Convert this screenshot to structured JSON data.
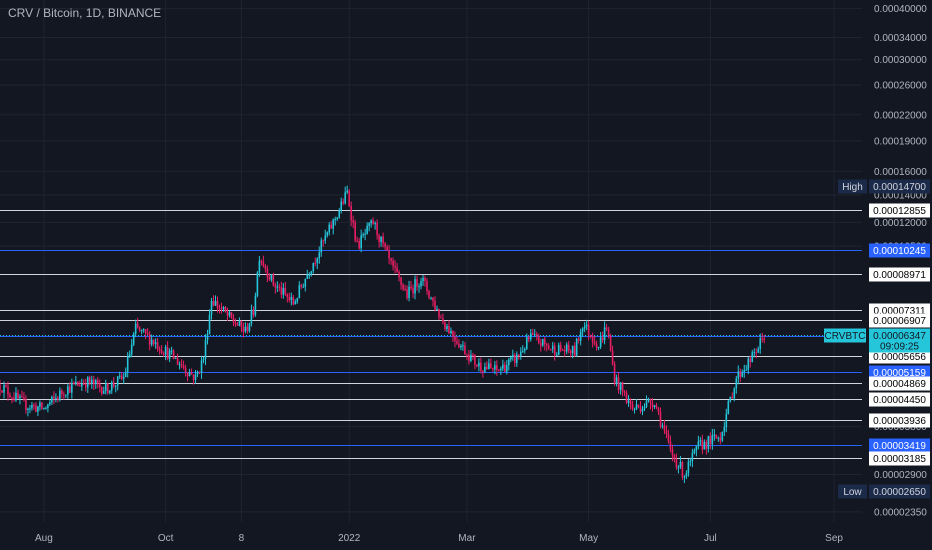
{
  "header": {
    "title": "CRV / Bitcoin, 1D, BINANCE"
  },
  "colors": {
    "background": "#131722",
    "grid": "#1f2430",
    "up": "#26c6da",
    "down": "#e91e63",
    "white_line": "#d1d4dc",
    "blue_line": "#2962ff",
    "axis_text": "#b2b5be"
  },
  "price_axis": {
    "ticks": [
      "0.00040000",
      "0.00034000",
      "0.00030000",
      "0.00026000",
      "0.00022000",
      "0.00019000",
      "0.00016000",
      "0.00014000",
      "0.00012000",
      "0.00010500",
      "0.00003800",
      "0.00002900",
      "0.00002350"
    ]
  },
  "time_axis": {
    "labels": [
      "Aug",
      "Oct",
      "8",
      "2022",
      "Mar",
      "May",
      "Jul",
      "Sep"
    ]
  },
  "levels": [
    {
      "value": "0.00012855",
      "style": "white"
    },
    {
      "value": "0.00010245",
      "style": "blue"
    },
    {
      "value": "0.00008971",
      "style": "white"
    },
    {
      "value": "0.00007311",
      "style": "white"
    },
    {
      "value": "0.00006907",
      "style": "white"
    },
    {
      "value": "0.00006336",
      "style": "blue"
    },
    {
      "value": "0.00005656",
      "style": "white"
    },
    {
      "value": "0.00005159",
      "style": "blue"
    },
    {
      "value": "0.00004869",
      "style": "white"
    },
    {
      "value": "0.00004450",
      "style": "white"
    },
    {
      "value": "0.00003936",
      "style": "white"
    },
    {
      "value": "0.00003419",
      "style": "blue"
    },
    {
      "value": "0.00003185",
      "style": "white"
    }
  ],
  "high": {
    "label": "High",
    "value": "0.00014700"
  },
  "low": {
    "label": "Low",
    "value": "0.00002650"
  },
  "current": {
    "symbol": "CRVBTC",
    "price": "0.00006347",
    "countdown": "09:09:25"
  },
  "chart_data": {
    "type": "candlestick",
    "title": "CRV / Bitcoin, 1D, BINANCE",
    "y_scale": "log",
    "ylim": [
      2.22e-05,
      0.00042
    ],
    "x_range": [
      "2021-07-10",
      "2022-09-15"
    ],
    "x_ticks": [
      "Aug",
      "Oct",
      "8",
      "2022",
      "Mar",
      "May",
      "Jul",
      "Sep"
    ],
    "grid": true,
    "close_path": [
      [
        "2021-07-10",
        4.8e-05
      ],
      [
        "2021-07-22",
        4.3e-05
      ],
      [
        "2021-08-01",
        4.2e-05
      ],
      [
        "2021-08-12",
        4.7e-05
      ],
      [
        "2021-08-22",
        4.9e-05
      ],
      [
        "2021-09-01",
        4.7e-05
      ],
      [
        "2021-09-10",
        5e-05
      ],
      [
        "2021-09-16",
        6.6e-05
      ],
      [
        "2021-09-24",
        6.2e-05
      ],
      [
        "2021-10-05",
        5.6e-05
      ],
      [
        "2021-10-16",
        5e-05
      ],
      [
        "2021-10-20",
        5.6e-05
      ],
      [
        "2021-10-24",
        7.8e-05
      ],
      [
        "2021-11-02",
        7e-05
      ],
      [
        "2021-11-10",
        6.5e-05
      ],
      [
        "2021-11-14",
        7.3e-05
      ],
      [
        "2021-11-17",
        0.0001
      ],
      [
        "2021-11-24",
        8.5e-05
      ],
      [
        "2021-12-04",
        7.6e-05
      ],
      [
        "2021-12-12",
        9.2e-05
      ],
      [
        "2021-12-24",
        0.00012
      ],
      [
        "2021-12-31",
        0.000142
      ],
      [
        "2022-01-05",
        0.000105
      ],
      [
        "2022-01-13",
        0.00012
      ],
      [
        "2022-01-22",
        9.4e-05
      ],
      [
        "2022-01-30",
        8e-05
      ],
      [
        "2022-02-06",
        8.8e-05
      ],
      [
        "2022-02-16",
        7e-05
      ],
      [
        "2022-02-26",
        6e-05
      ],
      [
        "2022-03-06",
        5.4e-05
      ],
      [
        "2022-03-16",
        5.2e-05
      ],
      [
        "2022-03-26",
        5.6e-05
      ],
      [
        "2022-04-02",
        6.3e-05
      ],
      [
        "2022-04-12",
        5.9e-05
      ],
      [
        "2022-04-24",
        5.8e-05
      ],
      [
        "2022-04-28",
        6.8e-05
      ],
      [
        "2022-05-06",
        6e-05
      ],
      [
        "2022-05-10",
        6.7e-05
      ],
      [
        "2022-05-14",
        5e-05
      ],
      [
        "2022-05-23",
        4.2e-05
      ],
      [
        "2022-06-03",
        4.4e-05
      ],
      [
        "2022-06-11",
        3.3e-05
      ],
      [
        "2022-06-18",
        2.9e-05
      ],
      [
        "2022-06-25",
        3.4e-05
      ],
      [
        "2022-07-06",
        3.6e-05
      ],
      [
        "2022-07-14",
        5e-05
      ],
      [
        "2022-07-22",
        5.6e-05
      ],
      [
        "2022-07-28",
        6.34e-05
      ]
    ]
  }
}
